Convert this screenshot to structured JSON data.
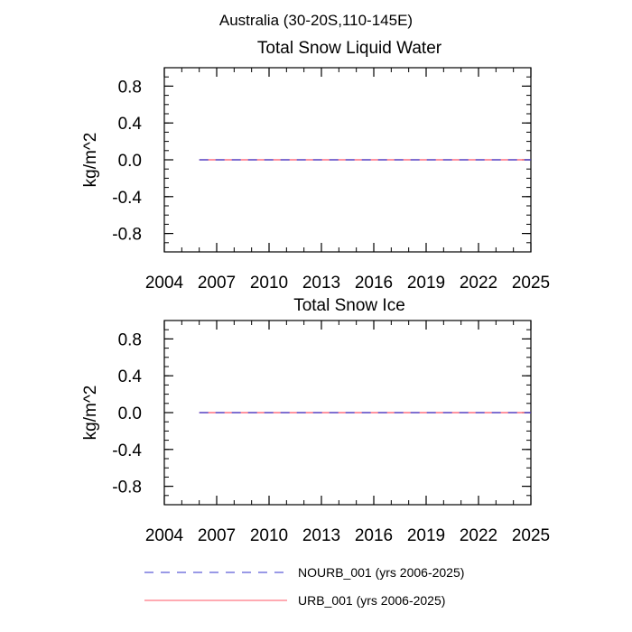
{
  "main_title": "Australia (30-20S,110-145E)",
  "chart_data": [
    {
      "type": "line",
      "title": "Total Snow Liquid Water",
      "xlabel": "",
      "ylabel": "kg/m^2",
      "xlim": [
        2004,
        2025
      ],
      "ylim": [
        -1.0,
        1.0
      ],
      "x_ticks": [
        "2004",
        "2007",
        "2010",
        "2013",
        "2016",
        "2019",
        "2022",
        "2025"
      ],
      "y_ticks": [
        "0.8",
        "0.4",
        "0.0",
        "-0.4",
        "-0.8"
      ],
      "grid": false,
      "series": [
        {
          "name": "NOURB_001 (yrs 2006-2025)",
          "color": "#3333cc",
          "dash": "dashed",
          "x": [
            2006,
            2025
          ],
          "y": [
            0.0,
            0.0
          ]
        },
        {
          "name": "URB_001 (yrs 2006-2025)",
          "color": "#ff5566",
          "dash": "solid",
          "x": [
            2006,
            2025
          ],
          "y": [
            0.0,
            0.0
          ]
        }
      ]
    },
    {
      "type": "line",
      "title": "Total Snow Ice",
      "xlabel": "",
      "ylabel": "kg/m^2",
      "xlim": [
        2004,
        2025
      ],
      "ylim": [
        -1.0,
        1.0
      ],
      "x_ticks": [
        "2004",
        "2007",
        "2010",
        "2013",
        "2016",
        "2019",
        "2022",
        "2025"
      ],
      "y_ticks": [
        "0.8",
        "0.4",
        "0.0",
        "-0.4",
        "-0.8"
      ],
      "grid": false,
      "series": [
        {
          "name": "NOURB_001 (yrs 2006-2025)",
          "color": "#3333cc",
          "dash": "dashed",
          "x": [
            2006,
            2025
          ],
          "y": [
            0.0,
            0.0
          ]
        },
        {
          "name": "URB_001 (yrs 2006-2025)",
          "color": "#ff5566",
          "dash": "solid",
          "x": [
            2006,
            2025
          ],
          "y": [
            0.0,
            0.0
          ]
        }
      ]
    }
  ],
  "legend": {
    "placement": "bottom-center",
    "items": [
      {
        "label": "NOURB_001 (yrs 2006-2025)",
        "color": "#3333cc",
        "dash": "dashed"
      },
      {
        "label": "URB_001 (yrs 2006-2025)",
        "color": "#ff5566",
        "dash": "solid"
      }
    ]
  }
}
